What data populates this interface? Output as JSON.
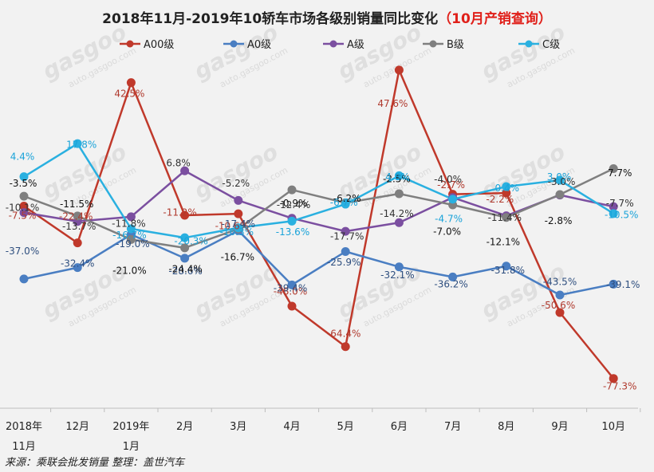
{
  "title": {
    "main": "2018年11月-2019年10轿车市场各级别销量同比变化",
    "highlight": "（10月产销查询）"
  },
  "source": "来源：乘联会批发销量  整理：盖世汽车",
  "watermark": {
    "brand": "gasgoo",
    "url": "auto.gasgoo.com"
  },
  "chart_data": {
    "type": "line",
    "categories": [
      [
        "2018年",
        "11月"
      ],
      [
        "12月"
      ],
      [
        "2019年",
        "1月"
      ],
      [
        "2月"
      ],
      [
        "3月"
      ],
      [
        "4月"
      ],
      [
        "5月"
      ],
      [
        "6月"
      ],
      [
        "7月"
      ],
      [
        "8月"
      ],
      [
        "9月"
      ],
      [
        "10月"
      ]
    ],
    "legend_position": "top",
    "grid": false,
    "series": [
      {
        "name": "A00级",
        "color": "#c0392b",
        "values": [
          -7.5,
          -22.4,
          42.5,
          -11.2,
          -10.6,
          -48.0,
          -64.4,
          47.6,
          -2.7,
          -2.2,
          -50.6,
          -77.3
        ],
        "labels": [
          "-7.5%",
          "-22.4%",
          "42.5%",
          "-11.2%",
          "-10.6%",
          "-48.0%",
          "-64.4%",
          "47.6%",
          "-2.7%",
          "-2.2%",
          "-50.6%",
          "-77.3%"
        ]
      },
      {
        "name": "A0级",
        "color": "#4a7ec2",
        "values": [
          -37.0,
          -32.4,
          -19.0,
          -28.6,
          -17.4,
          -39.4,
          -25.9,
          -32.1,
          -36.2,
          -31.8,
          -43.5,
          -39.1
        ],
        "labels": [
          "-37.0%",
          "-32.4%",
          "-19.0%",
          "-28.6%",
          "-17.4%",
          "-39.4%",
          "-25.9%",
          "-32.1%",
          "-36.2%",
          "-31.8%",
          "-43.5%",
          "-39.1%"
        ]
      },
      {
        "name": "A级",
        "color": "#7b4fa0",
        "values": [
          -10.1,
          -13.7,
          -11.8,
          6.8,
          -5.2,
          -12.4,
          -17.7,
          -14.2,
          -4.0,
          -11.4,
          -3.0,
          -7.7
        ],
        "labels": [
          "-10.1%",
          "-13.7%",
          "-11.8%",
          "6.8%",
          "-5.2%",
          "-12.4%",
          "-17.7%",
          "-14.2%",
          "-4.0%",
          "-11.4%",
          "-3.0%",
          "-7.7%"
        ]
      },
      {
        "name": "B级",
        "color": "#7f7f7f",
        "values": [
          -3.5,
          -11.5,
          -21.0,
          -24.4,
          -16.7,
          -0.9,
          -6.2,
          -2.5,
          -7.0,
          -12.1,
          -2.8,
          7.7
        ],
        "labels": [
          "-3.5%",
          "-11.5%",
          "-21.0%",
          "-24.4%",
          "-16.7%",
          "-0.9%",
          "-6.2%",
          "-2.5%",
          "-7.0%",
          "-12.1%",
          "-2.8%",
          "7.7%"
        ]
      },
      {
        "name": "C级",
        "color": "#2ab0e0",
        "values": [
          4.4,
          17.8,
          -16.7,
          -20.3,
          -16.3,
          -13.6,
          -6.7,
          4.8,
          -4.7,
          0.4,
          3.0,
          -10.5
        ],
        "labels": [
          "4.4%",
          "17.8%",
          "-16.7%",
          "-20.3%",
          "-16.3%",
          "-13.6%",
          "-6.7%",
          "4.8%",
          "-4.7%",
          "0.4%",
          "3.0%",
          "-10.5%"
        ]
      }
    ]
  }
}
